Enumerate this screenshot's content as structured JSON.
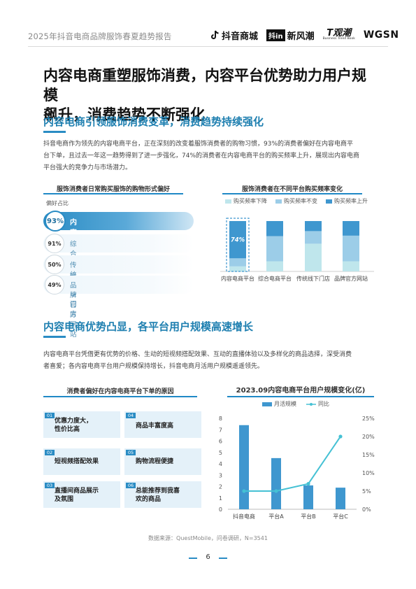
{
  "header": {
    "title": "2025年抖音电商品牌服饰春夏趋势报告",
    "logos": {
      "douyin": "抖音商城",
      "xfc_box": "抖in",
      "xfc": "新风潮",
      "gc": "T观潮",
      "gc_sub": "Business Trend Book",
      "wgsn": "WGSN"
    }
  },
  "main_title": {
    "line1": "内容电商重塑服饰消费，内容平台优势助力用户规模",
    "line2": "飙升，消费趋势不断强化"
  },
  "section1": {
    "title": "内容电商引领服饰消费变革，消费趋势持续强化",
    "paragraph_lines": [
      "抖音电商作为领先的内容电商平台，正在深刻的改变着服饰消费者的购物习惯，93%的消费者偏好在内容电商平",
      "台下单，且过去一年这一趋势得到了进一步强化，74%的消费者在内容电商平台的购买频率上升，展现出内容电商",
      "平台强大的竞争力与市场潜力。"
    ]
  },
  "section2": {
    "title": "内容电商优势凸显，各平台用户规模高速增长",
    "paragraph_lines": [
      "内容电商平台凭借更有优势的价格、生动的短视频搭配效果、互动的直播体验以及多样化的商品选择，深受消费",
      "者喜爱；各内容电商平台用户规模保持增长，抖音电商月活用户规模遥遥领先。"
    ]
  },
  "chart_data": [
    {
      "type": "bar",
      "title": "服饰消费者日常购买服饰的购物形式偏好",
      "ylabel": "偏好占比",
      "categories": [
        "内容电商平台",
        "综合电商平台",
        "传统线下门店",
        "品牌官方网站"
      ],
      "values": [
        93,
        91,
        50,
        49
      ],
      "value_labels": [
        "93%",
        "91%",
        "50%",
        "49%"
      ],
      "orientation": "horizontal"
    },
    {
      "type": "bar",
      "stacked": true,
      "title": "服饰消费者在不同平台购买频率变化",
      "categories": [
        "内容电商平台",
        "综合电商平台",
        "传统线下门店",
        "品牌官方网站"
      ],
      "series": [
        {
          "name": "购买频率下降",
          "values": [
            10,
            20,
            55,
            20
          ],
          "color": "#bfe6ec"
        },
        {
          "name": "购买频率不变",
          "values": [
            16,
            50,
            25,
            51
          ],
          "color": "#9ccde8"
        },
        {
          "name": "购买频率上升",
          "values": [
            74,
            30,
            20,
            29
          ],
          "color": "#3f97cf"
        }
      ],
      "ylim": [
        0,
        100
      ],
      "annotation": "74%",
      "legend_position": "top"
    },
    {
      "type": "bar",
      "title": "2023.09内容电商平台用户规模变化(亿)",
      "categories": [
        "抖音电商",
        "平台A",
        "平台B",
        "平台C"
      ],
      "series": [
        {
          "name": "月活规模",
          "type": "bar",
          "axis": "left",
          "values": [
            7.4,
            4.5,
            2.1,
            1.9
          ],
          "color": "#3f97cf"
        },
        {
          "name": "同比",
          "type": "line",
          "axis": "right",
          "values": [
            5,
            5,
            7,
            20
          ],
          "color": "#45c1d4"
        }
      ],
      "ylim_left": [
        0,
        8
      ],
      "yticks_left": [
        "0",
        "1",
        "2",
        "3",
        "4",
        "5",
        "6",
        "7",
        "8"
      ],
      "ylim_right": [
        0,
        25
      ],
      "yticks_right": [
        "0%",
        "5%",
        "10%",
        "15%",
        "20%",
        "25%"
      ],
      "legend_position": "top"
    }
  ],
  "reasons": {
    "title": "消费者偏好在内容电商平台下单的原因",
    "items": [
      {
        "num": "01",
        "text": "优惠力度大，\n性价比高"
      },
      {
        "num": "02",
        "text": "短视频搭配效果"
      },
      {
        "num": "03",
        "text": "直播间商品展示\n及氛围"
      },
      {
        "num": "04",
        "text": "商品丰富度高"
      },
      {
        "num": "05",
        "text": "购物流程便捷"
      },
      {
        "num": "06",
        "text": "总能推荐到我喜\n欢的商品"
      }
    ]
  },
  "footer": {
    "source": "数据来源：QuestMobile，问卷调研，N=3541",
    "page_number": "6"
  },
  "colors": {
    "accent": "#2a8cc4",
    "title_blue": "#1e7fb0"
  }
}
